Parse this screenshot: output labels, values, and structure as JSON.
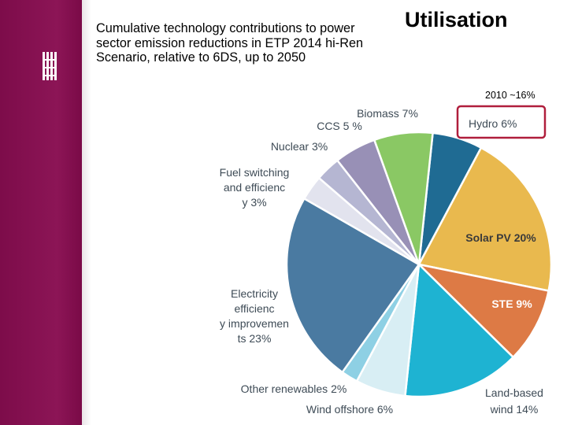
{
  "slide": {
    "subtitle": "Cumulative technology contributions to power sector emission reductions in ETP 2014 hi-Ren Scenario, relative to 6DS, up to 2050",
    "heading": "Utilisation",
    "annotation": "2010 ~16%"
  },
  "colors": {
    "sidebar": "#87104f",
    "highlight_box": "#b01e3c"
  },
  "chart_data": {
    "type": "pie",
    "title": "",
    "highlighted_slice": "Hydro",
    "slices": [
      {
        "label": "Hydro",
        "value": 6,
        "text": "Hydro 6%",
        "color": "#1f6b93"
      },
      {
        "label": "Solar PV",
        "value": 20,
        "text": "Solar PV 20%",
        "color": "#e9b94e"
      },
      {
        "label": "STE",
        "value": 9,
        "text": "STE 9%",
        "color": "#dd7a45"
      },
      {
        "label": "Land-based wind",
        "value": 14,
        "text": "Land-based wind 14%",
        "color": "#1eb3d2"
      },
      {
        "label": "Wind offshore",
        "value": 6,
        "text": "Wind offshore 6%",
        "color": "#d8eef4"
      },
      {
        "label": "Other renewables",
        "value": 2,
        "text": "Other renewables 2%",
        "color": "#8ed0e4"
      },
      {
        "label": "Electricity efficiency improvements",
        "value": 23,
        "text": "Electricity efficiency improvements 23%",
        "color": "#4a7aa1"
      },
      {
        "label": "Fuel switching and efficiency",
        "value": 3,
        "text": "Fuel switching and efficiency 3%",
        "color": "#e2e3ee"
      },
      {
        "label": "Nuclear",
        "value": 3,
        "text": "Nuclear 3%",
        "color": "#b5b6d2"
      },
      {
        "label": "CCS",
        "value": 5,
        "text": "CCS 5 %",
        "color": "#9890b6"
      },
      {
        "label": "Biomass",
        "value": 7,
        "text": "Biomass 7%",
        "color": "#8ac864"
      }
    ]
  }
}
